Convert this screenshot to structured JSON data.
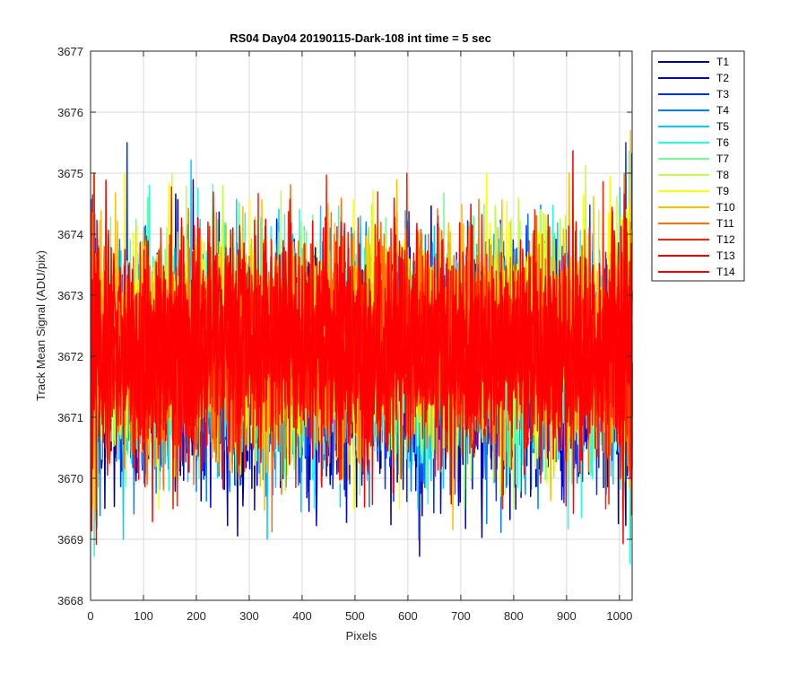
{
  "chart_data": {
    "type": "line",
    "title": "RS04 Day04 20190115-Dark-108 int time = 5 sec",
    "xlabel": "Pixels",
    "ylabel": "Track Mean Signal (ADU/pix)",
    "xlim": [
      0,
      1024
    ],
    "ylim": [
      3668,
      3677
    ],
    "x_ticks": [
      0,
      100,
      200,
      300,
      400,
      500,
      600,
      700,
      800,
      900,
      1000
    ],
    "y_ticks": [
      3668,
      3669,
      3670,
      3671,
      3672,
      3673,
      3674,
      3675,
      3676,
      3677
    ],
    "grid": true,
    "legend_position": "outside-top-right",
    "x": {
      "start": 1,
      "end": 1024,
      "step": 1
    },
    "series": [
      {
        "name": "T1",
        "color": "#00008f",
        "mean": 3671.7,
        "spread": 0.9,
        "min": 3669.0,
        "max": 3675.0
      },
      {
        "name": "T2",
        "color": "#0000df",
        "mean": 3671.7,
        "spread": 0.9,
        "min": 3668.5,
        "max": 3675.8
      },
      {
        "name": "T3",
        "color": "#0030ff",
        "mean": 3671.8,
        "spread": 0.9,
        "min": 3668.5,
        "max": 3675.5
      },
      {
        "name": "T4",
        "color": "#0080ff",
        "mean": 3671.9,
        "spread": 0.9,
        "min": 3669.0,
        "max": 3676.2
      },
      {
        "name": "T5",
        "color": "#00cfff",
        "mean": 3672.0,
        "spread": 0.9,
        "min": 3669.0,
        "max": 3675.5
      },
      {
        "name": "T6",
        "color": "#20ffdf",
        "mean": 3672.0,
        "spread": 0.9,
        "min": 3668.5,
        "max": 3675.8
      },
      {
        "name": "T7",
        "color": "#70ff8f",
        "mean": 3672.1,
        "spread": 0.9,
        "min": 3669.5,
        "max": 3675.5
      },
      {
        "name": "T8",
        "color": "#bfff40",
        "mean": 3672.1,
        "spread": 0.9,
        "min": 3669.5,
        "max": 3675.5
      },
      {
        "name": "T9",
        "color": "#ffff00",
        "mean": 3672.2,
        "spread": 0.9,
        "min": 3669.5,
        "max": 3675.0
      },
      {
        "name": "T10",
        "color": "#ffbf00",
        "mean": 3672.2,
        "spread": 0.9,
        "min": 3669.0,
        "max": 3675.7
      },
      {
        "name": "T11",
        "color": "#ff7000",
        "mean": 3672.1,
        "spread": 0.9,
        "min": 3668.7,
        "max": 3675.0
      },
      {
        "name": "T12",
        "color": "#ff2000",
        "mean": 3672.1,
        "spread": 0.9,
        "min": 3669.5,
        "max": 3675.0
      },
      {
        "name": "T13",
        "color": "#ff0000",
        "mean": 3672.1,
        "spread": 0.85,
        "min": 3668.7,
        "max": 3675.6
      },
      {
        "name": "T14",
        "color": "#ff0000",
        "mean": 3672.1,
        "spread": 0.85,
        "min": 3668.7,
        "max": 3675.5
      }
    ]
  }
}
